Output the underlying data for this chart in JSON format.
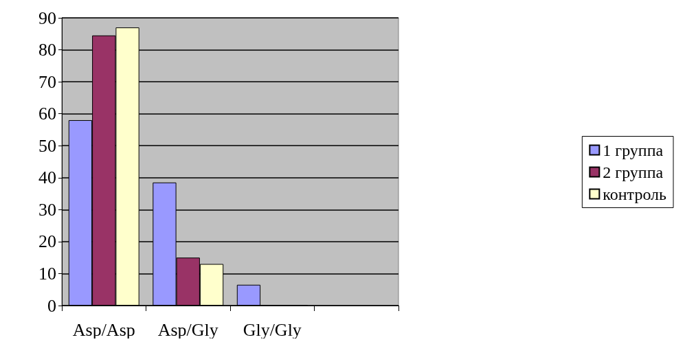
{
  "chart_data": {
    "type": "bar",
    "categories": [
      "Asp/Asp",
      "Asp/Gly",
      "Gly/Gly",
      null
    ],
    "series": [
      {
        "name": "1 группа",
        "color": "#9999ff",
        "values": [
          58,
          38.5,
          6.5,
          null
        ]
      },
      {
        "name": "2 группа",
        "color": "#993366",
        "values": [
          84.5,
          15,
          0,
          null
        ]
      },
      {
        "name": "контроль",
        "color": "#ffffcc",
        "values": [
          87,
          13,
          0,
          null
        ]
      }
    ],
    "ylim": [
      0,
      90
    ],
    "yticks": [
      0,
      10,
      20,
      30,
      40,
      50,
      60,
      70,
      80,
      90
    ],
    "grid": "y",
    "legend": "right"
  }
}
